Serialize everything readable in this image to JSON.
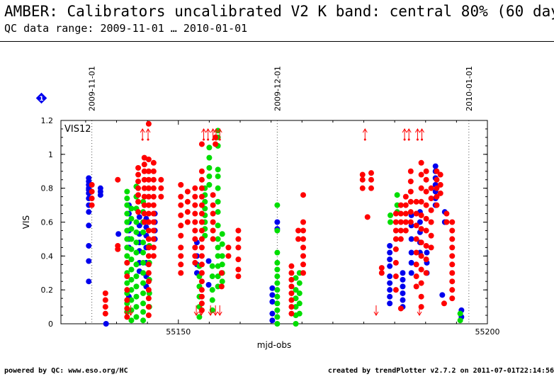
{
  "header": {
    "title": "AMBER: Calibrators uncalibrated V2 K band: central 80% (60 days)",
    "subtitle": "QC data range: 2009-11-01 … 2010-01-01"
  },
  "footer": {
    "left": "powered by QC: www.eso.org/HC",
    "right": "created by trendPlotter v2.7.2 on 2011-07-01T22:14:56"
  },
  "info_badge": "1",
  "colors": {
    "red": "#ff0000",
    "green": "#00dd00",
    "blue": "#0000ee"
  },
  "chart_data": {
    "type": "scatter",
    "panel_label": "VIS12",
    "xlabel": "mjd-obs",
    "ylabel": "VIS",
    "xlim": [
      55131,
      55200
    ],
    "ylim": [
      0,
      1.2
    ],
    "xticks": [
      {
        "value": 55150,
        "label": "55150"
      },
      {
        "value": 55200,
        "label": "55200"
      }
    ],
    "yticks": [
      {
        "value": 0,
        "label": "0"
      },
      {
        "value": 0.2,
        "label": "0.2"
      },
      {
        "value": 0.4,
        "label": "0.4"
      },
      {
        "value": 0.6,
        "label": "0.6"
      },
      {
        "value": 0.8,
        "label": "0.8"
      },
      {
        "value": 1,
        "label": "1"
      },
      {
        "value": 1.2,
        "label": "1.2"
      }
    ],
    "date_markers": [
      {
        "mjd": 55136,
        "label": "2009-11-01"
      },
      {
        "mjd": 55166,
        "label": "2009-12-01"
      },
      {
        "mjd": 55197,
        "label": "2010-01-01"
      }
    ],
    "series": [
      {
        "color": "#0000ee",
        "columns": [
          {
            "x": 55135.5,
            "y": [
              0.25,
              0.37,
              0.46,
              0.58,
              0.66,
              0.7,
              0.74,
              0.77,
              0.79,
              0.8,
              0.82,
              0.84,
              0.86
            ]
          },
          {
            "x": 55137.4,
            "y": [
              0.76,
              0.78,
              0.8
            ]
          },
          {
            "x": 55138.3,
            "y": [
              0.0
            ]
          },
          {
            "x": 55140.3,
            "y": [
              0.53
            ]
          },
          {
            "x": 55142.0,
            "y": [
              0.16,
              0.45,
              0.5,
              0.55,
              0.6,
              0.65,
              0.7
            ]
          },
          {
            "x": 55143.7,
            "y": [
              0.31,
              0.36,
              0.43,
              0.48,
              0.53,
              0.58,
              0.63
            ]
          },
          {
            "x": 55144.8,
            "y": [
              0.22,
              0.28,
              0.36,
              0.45,
              0.52,
              0.57,
              0.62
            ]
          },
          {
            "x": 55146.2,
            "y": [
              0.5,
              0.55,
              0.6,
              0.65
            ]
          },
          {
            "x": 55153.0,
            "y": [
              0.3,
              0.35,
              0.4,
              0.48
            ]
          },
          {
            "x": 55154.9,
            "y": [
              0.23,
              0.37
            ]
          },
          {
            "x": 55165.2,
            "y": [
              0.02,
              0.06,
              0.13,
              0.17,
              0.21
            ]
          },
          {
            "x": 55166.0,
            "y": [
              0.56,
              0.6
            ]
          },
          {
            "x": 55184.2,
            "y": [
              0.12,
              0.16,
              0.2,
              0.24,
              0.28,
              0.34,
              0.38,
              0.42,
              0.46
            ]
          },
          {
            "x": 55186.3,
            "y": [
              0.1,
              0.14,
              0.18,
              0.22,
              0.26,
              0.3
            ]
          },
          {
            "x": 55187.7,
            "y": [
              0.3,
              0.36,
              0.42,
              0.5,
              0.58,
              0.64
            ]
          },
          {
            "x": 55189.1,
            "y": [
              0.42,
              0.48,
              0.54,
              0.6,
              0.66
            ]
          },
          {
            "x": 55190.2,
            "y": [
              0.3,
              0.36,
              0.42
            ]
          },
          {
            "x": 55191.6,
            "y": [
              0.7,
              0.74,
              0.78,
              0.82,
              0.86,
              0.9,
              0.93
            ]
          },
          {
            "x": 55193.1,
            "y": [
              0.6,
              0.66
            ]
          },
          {
            "x": 55192.7,
            "y": [
              0.17
            ]
          },
          {
            "x": 55195.8,
            "y": [
              0.04,
              0.08
            ]
          }
        ]
      },
      {
        "color": "#00dd00",
        "columns": [
          {
            "x": 55141.7,
            "y": [
              0.07,
              0.12,
              0.18,
              0.24,
              0.3,
              0.36,
              0.4,
              0.45,
              0.5,
              0.55,
              0.6,
              0.65,
              0.7,
              0.74,
              0.78
            ]
          },
          {
            "x": 55142.4,
            "y": [
              0.02,
              0.08,
              0.14,
              0.2,
              0.26,
              0.32,
              0.38,
              0.44,
              0.5,
              0.56,
              0.62,
              0.68
            ]
          },
          {
            "x": 55143.2,
            "y": [
              0.04,
              0.1,
              0.16,
              0.22,
              0.28,
              0.35,
              0.42,
              0.48,
              0.54,
              0.6,
              0.68,
              0.75,
              0.81
            ]
          },
          {
            "x": 55144.3,
            "y": [
              0.02,
              0.07,
              0.12,
              0.18,
              0.24,
              0.3,
              0.36,
              0.42,
              0.48,
              0.54,
              0.6,
              0.66,
              0.72
            ]
          },
          {
            "x": 55145.3,
            "y": [
              0.1,
              0.18,
              0.26,
              0.36,
              0.46
            ]
          },
          {
            "x": 55153.4,
            "y": [
              0.04,
              0.1,
              0.16,
              0.22,
              0.28,
              0.34
            ]
          },
          {
            "x": 55154.3,
            "y": [
              0.52,
              0.56,
              0.6,
              0.64,
              0.68,
              0.72,
              0.76,
              0.8
            ]
          },
          {
            "x": 55155.0,
            "y": [
              0.82,
              0.87,
              0.92,
              0.98,
              1.04
            ]
          },
          {
            "x": 55155.5,
            "y": [
              0.08,
              0.14,
              0.2,
              0.28,
              0.34
            ]
          },
          {
            "x": 55156.4,
            "y": [
              0.22,
              0.28,
              0.34,
              0.4,
              0.45,
              0.5,
              0.58,
              0.66,
              0.72,
              0.8,
              0.87,
              0.91,
              1.05,
              1.1,
              1.14
            ]
          },
          {
            "x": 55157.1,
            "y": [
              0.25,
              0.3,
              0.35,
              0.4,
              0.47,
              0.53
            ]
          },
          {
            "x": 55166.0,
            "y": [
              0.0,
              0.04,
              0.08,
              0.12,
              0.16,
              0.2,
              0.24,
              0.28,
              0.32,
              0.36,
              0.42,
              0.55,
              0.7
            ]
          },
          {
            "x": 55169.0,
            "y": [
              0.0,
              0.05,
              0.1,
              0.15,
              0.2,
              0.27
            ]
          },
          {
            "x": 55169.6,
            "y": [
              0.06,
              0.12,
              0.18,
              0.24,
              0.3
            ]
          },
          {
            "x": 55184.3,
            "y": [
              0.6,
              0.64
            ]
          },
          {
            "x": 55185.4,
            "y": [
              0.66,
              0.7,
              0.76
            ]
          },
          {
            "x": 55195.6,
            "y": [
              0.02,
              0.06
            ]
          }
        ]
      },
      {
        "color": "#ff0000",
        "columns": [
          {
            "x": 55136.0,
            "y": [
              0.7,
              0.74,
              0.78,
              0.82
            ]
          },
          {
            "x": 55138.2,
            "y": [
              0.06,
              0.1,
              0.14,
              0.18
            ]
          },
          {
            "x": 55140.2,
            "y": [
              0.44,
              0.46,
              0.85
            ]
          },
          {
            "x": 55141.7,
            "y": [
              0.04,
              0.09,
              0.14,
              0.2,
              0.28,
              0.36
            ]
          },
          {
            "x": 55143.5,
            "y": [
              0.66,
              0.72,
              0.76,
              0.8,
              0.84,
              0.88,
              0.92
            ]
          },
          {
            "x": 55144.5,
            "y": [
              0.6,
              0.65,
              0.7,
              0.75,
              0.8,
              0.85,
              0.9,
              0.94,
              0.98
            ]
          },
          {
            "x": 55145.2,
            "y": [
              0.05,
              0.1,
              0.15,
              0.2,
              0.25,
              0.3,
              0.35,
              0.4,
              0.45,
              0.5,
              0.55,
              0.6,
              0.65,
              0.7,
              0.75,
              0.8,
              0.85,
              0.9,
              0.97,
              1.18
            ]
          },
          {
            "x": 55146.0,
            "y": [
              0.4,
              0.45,
              0.5,
              0.55,
              0.6,
              0.65,
              0.7,
              0.75,
              0.8,
              0.85,
              0.9,
              0.95
            ]
          },
          {
            "x": 55147.2,
            "y": [
              0.75,
              0.8,
              0.85
            ]
          },
          {
            "x": 55150.4,
            "y": [
              0.3,
              0.35,
              0.4,
              0.45,
              0.52,
              0.58,
              0.64,
              0.7,
              0.75,
              0.82
            ]
          },
          {
            "x": 55151.5,
            "y": [
              0.6,
              0.66,
              0.72,
              0.78
            ]
          },
          {
            "x": 55152.7,
            "y": [
              0.36,
              0.4,
              0.45,
              0.5,
              0.55,
              0.6,
              0.65,
              0.7,
              0.75,
              0.8
            ]
          },
          {
            "x": 55153.8,
            "y": [
              0.08,
              0.12,
              0.16,
              0.2,
              0.25,
              0.3,
              0.35,
              0.4,
              0.45,
              0.5,
              0.55,
              0.6,
              0.65,
              0.7,
              0.75,
              0.8,
              0.85,
              0.9,
              1.06
            ]
          },
          {
            "x": 55155.6,
            "y": [
              0.5,
              0.55,
              0.6,
              0.65,
              0.7,
              0.76
            ]
          },
          {
            "x": 55156.0,
            "y": [
              1.1,
              1.06
            ]
          },
          {
            "x": 55157.0,
            "y": [
              0.22,
              0.3
            ]
          },
          {
            "x": 55158.1,
            "y": [
              0.4,
              0.45
            ]
          },
          {
            "x": 55159.7,
            "y": [
              0.28,
              0.32,
              0.38,
              0.45,
              0.5,
              0.55
            ]
          },
          {
            "x": 55168.3,
            "y": [
              0.06,
              0.1,
              0.14,
              0.18,
              0.22,
              0.26,
              0.3,
              0.34
            ]
          },
          {
            "x": 55170.2,
            "y": [
              0.3,
              0.35,
              0.4,
              0.45,
              0.5,
              0.55,
              0.6,
              0.76
            ]
          },
          {
            "x": 55169.4,
            "y": [
              0.5,
              0.55
            ]
          },
          {
            "x": 55179.8,
            "y": [
              0.8,
              0.85,
              0.88
            ]
          },
          {
            "x": 55181.2,
            "y": [
              0.8,
              0.85,
              0.89
            ]
          },
          {
            "x": 55180.6,
            "y": [
              0.63
            ]
          },
          {
            "x": 55182.9,
            "y": [
              0.3,
              0.33
            ]
          },
          {
            "x": 55185.2,
            "y": [
              0.2,
              0.28,
              0.36,
              0.44,
              0.5,
              0.55,
              0.6,
              0.65
            ]
          },
          {
            "x": 55186.0,
            "y": [
              0.09,
              0.5,
              0.55,
              0.6,
              0.65,
              0.7
            ]
          },
          {
            "x": 55186.8,
            "y": [
              0.55,
              0.6,
              0.65,
              0.7,
              0.75
            ]
          },
          {
            "x": 55187.6,
            "y": [
              0.6,
              0.66,
              0.72,
              0.78,
              0.84,
              0.9
            ]
          },
          {
            "x": 55188.5,
            "y": [
              0.22,
              0.28,
              0.35,
              0.42,
              0.5,
              0.58,
              0.65,
              0.72
            ]
          },
          {
            "x": 55189.3,
            "y": [
              0.1,
              0.16,
              0.24,
              0.32,
              0.4,
              0.48,
              0.56,
              0.64,
              0.72,
              0.8,
              0.88,
              0.95
            ]
          },
          {
            "x": 55190.1,
            "y": [
              0.3,
              0.38,
              0.46,
              0.55,
              0.62,
              0.7,
              0.78,
              0.85,
              0.9
            ]
          },
          {
            "x": 55190.9,
            "y": [
              0.45,
              0.52,
              0.6,
              0.67,
              0.74,
              0.8
            ]
          },
          {
            "x": 55191.8,
            "y": [
              0.7,
              0.75,
              0.8,
              0.85,
              0.9
            ]
          },
          {
            "x": 55192.4,
            "y": [
              0.77,
              0.82,
              0.88
            ]
          },
          {
            "x": 55193.4,
            "y": [
              0.6,
              0.65
            ]
          },
          {
            "x": 55194.3,
            "y": [
              0.15,
              0.2,
              0.25,
              0.3,
              0.35,
              0.4,
              0.45,
              0.5,
              0.55,
              0.6
            ]
          },
          {
            "x": 55193.0,
            "y": [
              0.12
            ]
          }
        ]
      }
    ],
    "upper_limit_arrows": [
      {
        "x": 55144.2,
        "color": "#ff0000"
      },
      {
        "x": 55145.1,
        "color": "#ff0000"
      },
      {
        "x": 55154.1,
        "color": "#ff0000"
      },
      {
        "x": 55154.8,
        "color": "#ff0000"
      },
      {
        "x": 55155.6,
        "color": "#ff0000"
      },
      {
        "x": 55156.1,
        "color": "#ff0000"
      },
      {
        "x": 55156.7,
        "color": "#ff0000"
      },
      {
        "x": 55180.2,
        "color": "#ff0000"
      },
      {
        "x": 55186.6,
        "color": "#ff0000"
      },
      {
        "x": 55187.3,
        "color": "#ff0000"
      },
      {
        "x": 55188.7,
        "color": "#ff0000"
      },
      {
        "x": 55189.4,
        "color": "#ff0000"
      }
    ],
    "lower_limit_arrows": [
      {
        "x": 55141.6,
        "color": "#ff0000"
      },
      {
        "x": 55142.3,
        "color": "#ff0000"
      },
      {
        "x": 55152.9,
        "color": "#ff0000"
      },
      {
        "x": 55153.7,
        "color": "#ff0000"
      },
      {
        "x": 55155.2,
        "color": "#ff0000"
      },
      {
        "x": 55156.0,
        "color": "#ff0000"
      },
      {
        "x": 55156.7,
        "color": "#ff0000"
      },
      {
        "x": 55182.0,
        "color": "#ff0000"
      },
      {
        "x": 55189.0,
        "color": "#ff0000"
      }
    ]
  }
}
